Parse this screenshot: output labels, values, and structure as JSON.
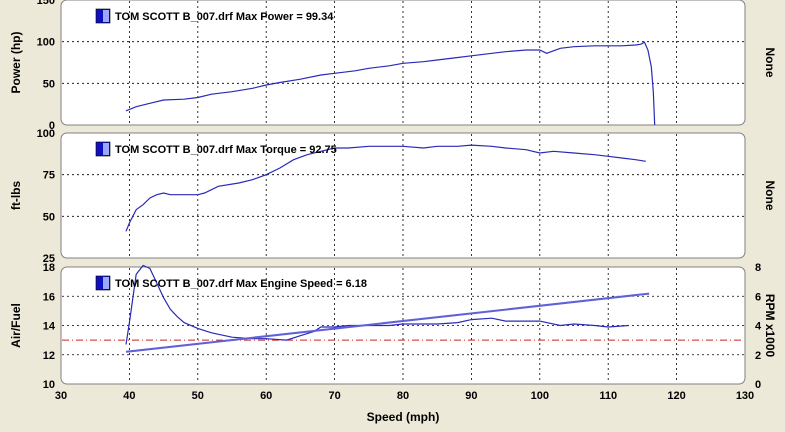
{
  "colors": {
    "background": "#ece9d8",
    "panel": "#ffffff",
    "curve": "#2a2ab8",
    "rpm_line": "#6060d8",
    "ref_line": "#cc2222",
    "legend_box_dark": "#1010c0",
    "legend_box_light": "#9aa8ff"
  },
  "x_axis": {
    "label": "Speed (mph)",
    "ticks": [
      "30",
      "40",
      "50",
      "60",
      "70",
      "80",
      "90",
      "100",
      "110",
      "120",
      "130"
    ],
    "range": [
      30,
      130
    ]
  },
  "chart_data": [
    {
      "type": "line",
      "title": "TOM SCOTT B_007.drf Max Power = 99.34",
      "ylabel": "Power (hp)",
      "right_label": "None",
      "ylim": [
        0,
        150
      ],
      "yticks": [
        "0",
        "50",
        "100",
        "150"
      ],
      "grid": true,
      "series": [
        {
          "x": [
            39.5,
            41,
            43,
            45,
            48,
            50,
            52,
            55,
            58,
            60,
            62,
            65,
            68,
            70,
            73,
            75,
            78,
            80,
            83,
            85,
            88,
            90,
            93,
            95,
            98,
            100,
            101,
            103,
            105,
            108,
            110,
            112,
            114,
            114.8,
            115.3,
            115.8,
            116.3,
            116.6,
            116.8
          ],
          "y": [
            17,
            22,
            26,
            30,
            31,
            33,
            37,
            40,
            44,
            48,
            51,
            55,
            60,
            62,
            65,
            68,
            71,
            74,
            76,
            78,
            81,
            83,
            86,
            88,
            90,
            90,
            86,
            92,
            94,
            95,
            95,
            95,
            96,
            97,
            99.34,
            90,
            70,
            40,
            0
          ]
        }
      ]
    },
    {
      "type": "line",
      "title": "TOM SCOTT B_007.drf Max Torque = 92.75",
      "ylabel": "ft-lbs",
      "right_label": "None",
      "ylim": [
        25,
        100
      ],
      "yticks": [
        "25",
        "50",
        "75",
        "100"
      ],
      "grid": true,
      "series": [
        {
          "x": [
            39.5,
            40,
            41,
            42,
            43,
            44,
            45,
            46,
            48,
            50,
            51,
            53,
            56,
            58,
            60,
            62,
            64,
            66,
            68,
            70,
            72,
            75,
            78,
            80,
            83,
            85,
            88,
            90,
            93,
            95,
            98,
            100,
            102,
            105,
            108,
            110,
            112,
            114,
            115.5
          ],
          "y": [
            41,
            46,
            54,
            57,
            61,
            63,
            64,
            63,
            63,
            63,
            64,
            68,
            70,
            72,
            75,
            79,
            84,
            87,
            89,
            91,
            91,
            92,
            92,
            92,
            91,
            92,
            92,
            92.75,
            92,
            91,
            90,
            88,
            89,
            88,
            87,
            86,
            85,
            84,
            83
          ]
        }
      ]
    },
    {
      "type": "line",
      "title": "TOM SCOTT B_007.drf Max Engine Speed = 6.18",
      "ylabel": "Air/Fuel",
      "right_label": "RPM x1000",
      "ylim": [
        10,
        18
      ],
      "yticks": [
        "10",
        "12",
        "14",
        "16",
        "18"
      ],
      "y2lim": [
        0,
        8
      ],
      "y2ticks": [
        "0",
        "2",
        "4",
        "6",
        "8"
      ],
      "reference_line": 13,
      "grid": true,
      "series": [
        {
          "name": "Air/Fuel",
          "axis": "left",
          "x": [
            39.5,
            40,
            41,
            42,
            43,
            44,
            45,
            46,
            47,
            48,
            50,
            52,
            55,
            58,
            60,
            63,
            65,
            67,
            68,
            70,
            72,
            75,
            78,
            80,
            83,
            85,
            88,
            90,
            93,
            95,
            98,
            100,
            103,
            105,
            108,
            110,
            113
          ],
          "y": [
            12.7,
            14.2,
            17.5,
            18.1,
            17.9,
            16.9,
            15.9,
            15.1,
            14.6,
            14.2,
            13.8,
            13.5,
            13.2,
            13.1,
            13.1,
            13.0,
            13.3,
            13.6,
            13.9,
            13.9,
            14.0,
            14.0,
            14.0,
            14.1,
            14.1,
            14.1,
            14.2,
            14.4,
            14.5,
            14.3,
            14.3,
            14.3,
            14.0,
            14.1,
            14.0,
            13.9,
            14.0
          ]
        },
        {
          "name": "RPM",
          "axis": "right",
          "x": [
            39.5,
            116
          ],
          "y": [
            2.2,
            6.18
          ]
        }
      ]
    }
  ]
}
